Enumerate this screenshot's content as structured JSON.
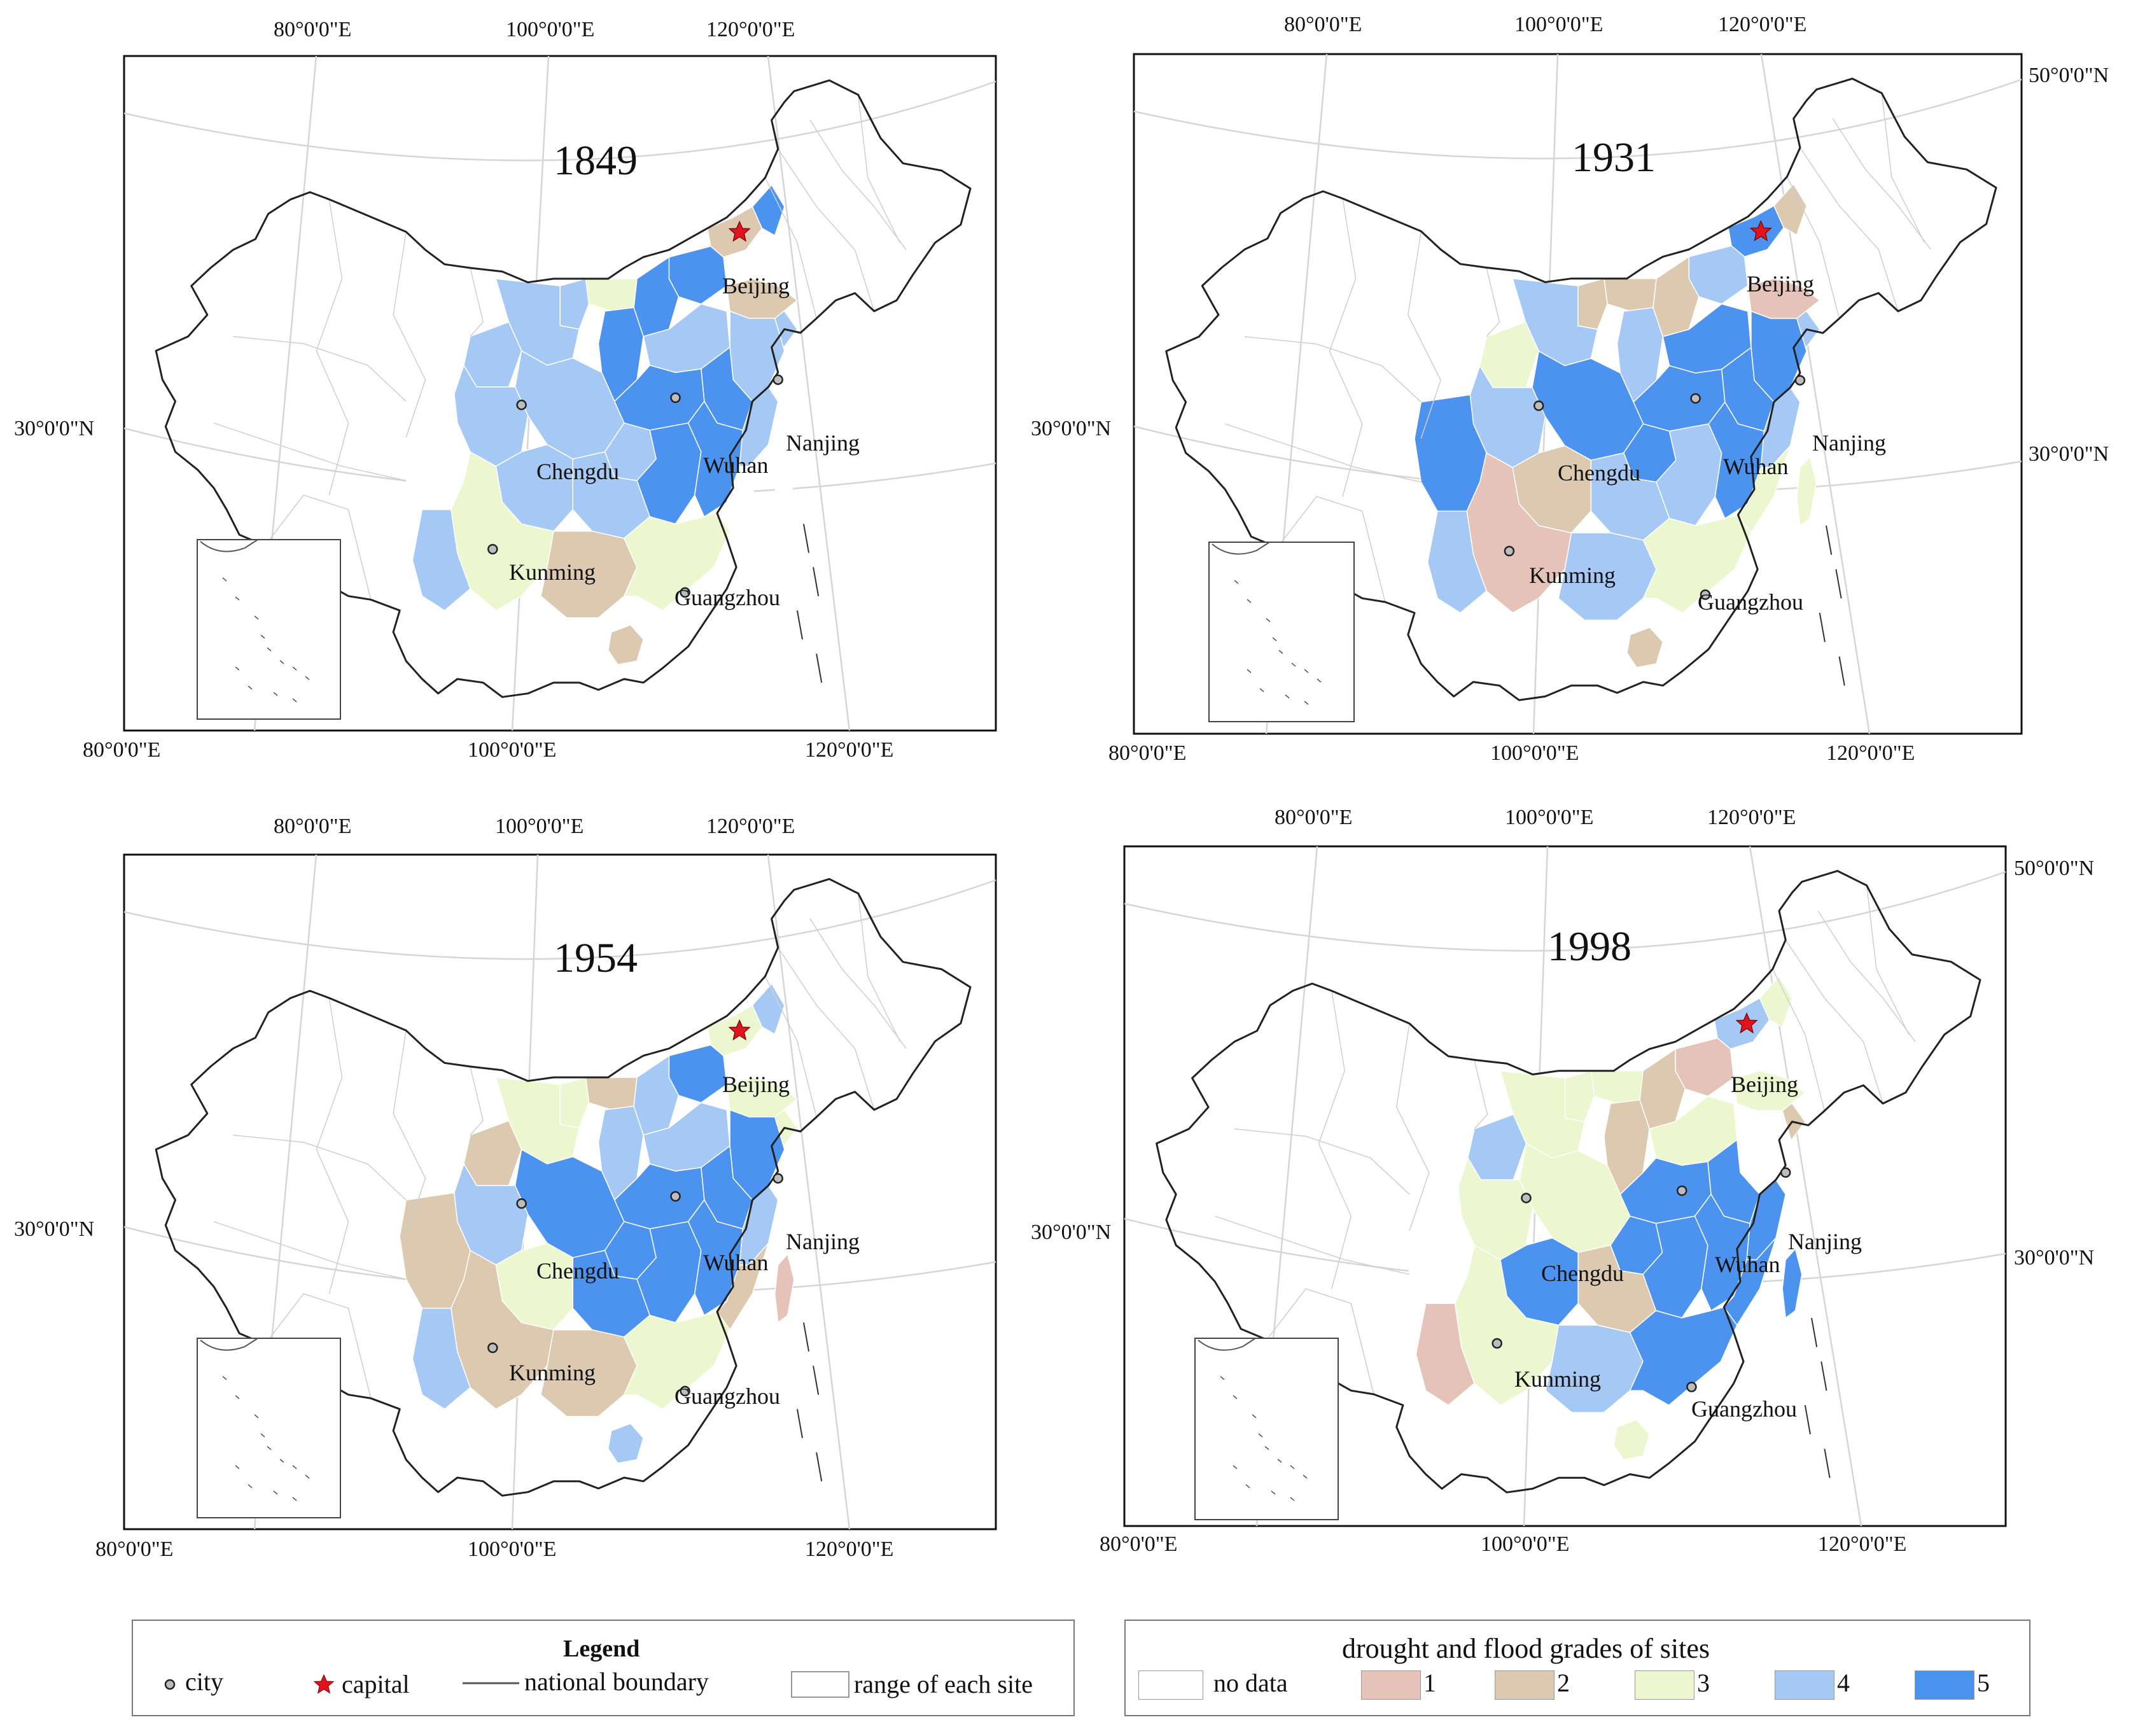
{
  "panels": [
    {
      "year": "1849",
      "id": "p1849"
    },
    {
      "year": "1931",
      "id": "p1931"
    },
    {
      "year": "1954",
      "id": "p1954"
    },
    {
      "year": "1998",
      "id": "p1998"
    }
  ],
  "axis_labels": {
    "lon80": "80°0'0\"E",
    "lon100": "100°0'0\"E",
    "lon120": "120°0'0\"E",
    "lat30": "30°0'0\"N",
    "lat50": "50°0'0\"N"
  },
  "cities": {
    "beijing": "Beijing",
    "nanjing": "Nanjing",
    "wuhan": "Wuhan",
    "chengdu": "Chengdu",
    "kunming": "Kunming",
    "guangzhou": "Guangzhou"
  },
  "legend": {
    "title": "Legend",
    "city": "city",
    "capital": "capital",
    "national_boundary": "national boundary",
    "range_of_each_site": "range of each site"
  },
  "grade_legend": {
    "title": "drought and flood grades of sites",
    "items": [
      {
        "label": "no data",
        "color": "#ffffff"
      },
      {
        "label": "1",
        "color": "#e6c3b8"
      },
      {
        "label": "2",
        "color": "#dcc9b0"
      },
      {
        "label": "3",
        "color": "#ecf7cf"
      },
      {
        "label": "4",
        "color": "#a6c8f5"
      },
      {
        "label": "5",
        "color": "#4b93ee"
      }
    ]
  },
  "colors": {
    "g1": "#e6c3b8",
    "g2": "#dcc9b0",
    "g3": "#ecf7cf",
    "g4": "#a6c8f5",
    "g5": "#4b93ee",
    "capital": "#e0141e"
  }
}
